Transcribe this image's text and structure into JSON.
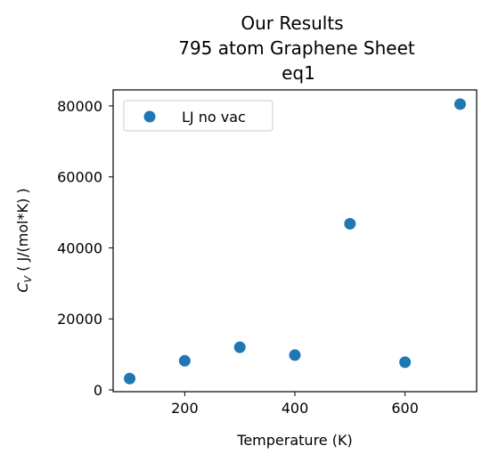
{
  "chart_data": {
    "type": "scatter",
    "title": [
      "Our Results",
      "795 atom Graphene Sheet",
      "eq1"
    ],
    "xlabel": "Temperature (K)",
    "ylabel_symbol": "C",
    "ylabel_subscript": "V",
    "ylabel_units": " ( J/(mol*K) )",
    "xlim": [
      70,
      730
    ],
    "ylim": [
      -500,
      84500
    ],
    "xticks": [
      200,
      400,
      600
    ],
    "xtick_labels": [
      "200",
      "400",
      "600"
    ],
    "yticks": [
      0,
      20000,
      40000,
      60000,
      80000
    ],
    "ytick_labels": [
      "0",
      "20000",
      "40000",
      "60000",
      "80000"
    ],
    "grid": false,
    "legend_position": "upper-left",
    "series": [
      {
        "name": "LJ no vac",
        "color": "#1f77b4",
        "marker": "circle",
        "x": [
          100,
          200,
          300,
          400,
          500,
          600,
          700
        ],
        "y": [
          3200,
          8200,
          12000,
          9800,
          46800,
          7800,
          80500
        ]
      }
    ]
  }
}
